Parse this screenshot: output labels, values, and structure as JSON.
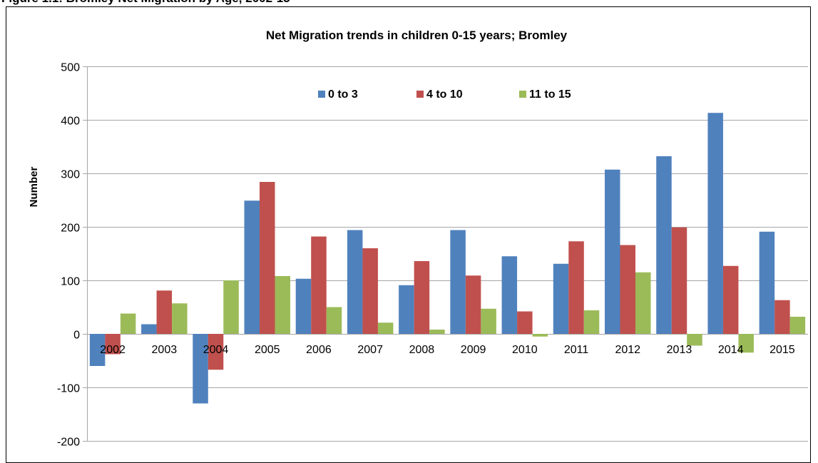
{
  "figure_caption": "Figure 1.1: Bromley Net Migration by Age, 2002-15",
  "colors": {
    "series_0_to_3": "#4f81bd",
    "series_4_to_10": "#c0504d",
    "series_11_to_15": "#9bbb59",
    "gridline": "#a6a6a6"
  },
  "chart_data": {
    "type": "bar",
    "title": "Net Migration trends in children 0-15 years; Bromley",
    "xlabel": "",
    "ylabel": "Number",
    "ylim": [
      -200,
      500
    ],
    "yticks": [
      -200,
      -100,
      0,
      100,
      200,
      300,
      400,
      500
    ],
    "grid": true,
    "legend_position": "top",
    "categories": [
      "2002",
      "2003",
      "2004",
      "2005",
      "2006",
      "2007",
      "2008",
      "2009",
      "2010",
      "2011",
      "2012",
      "2013",
      "2014",
      "2015"
    ],
    "series": [
      {
        "name": "0 to 3",
        "values": [
          -60,
          18,
          -130,
          249,
          103,
          194,
          91,
          194,
          145,
          131,
          307,
          332,
          413,
          191
        ]
      },
      {
        "name": "4 to 10",
        "values": [
          -38,
          81,
          -67,
          284,
          182,
          160,
          136,
          109,
          42,
          173,
          166,
          199,
          127,
          63
        ]
      },
      {
        "name": "11 to 15",
        "values": [
          38,
          57,
          100,
          108,
          50,
          21,
          8,
          47,
          -5,
          44,
          115,
          -22,
          -35,
          32
        ]
      }
    ]
  }
}
